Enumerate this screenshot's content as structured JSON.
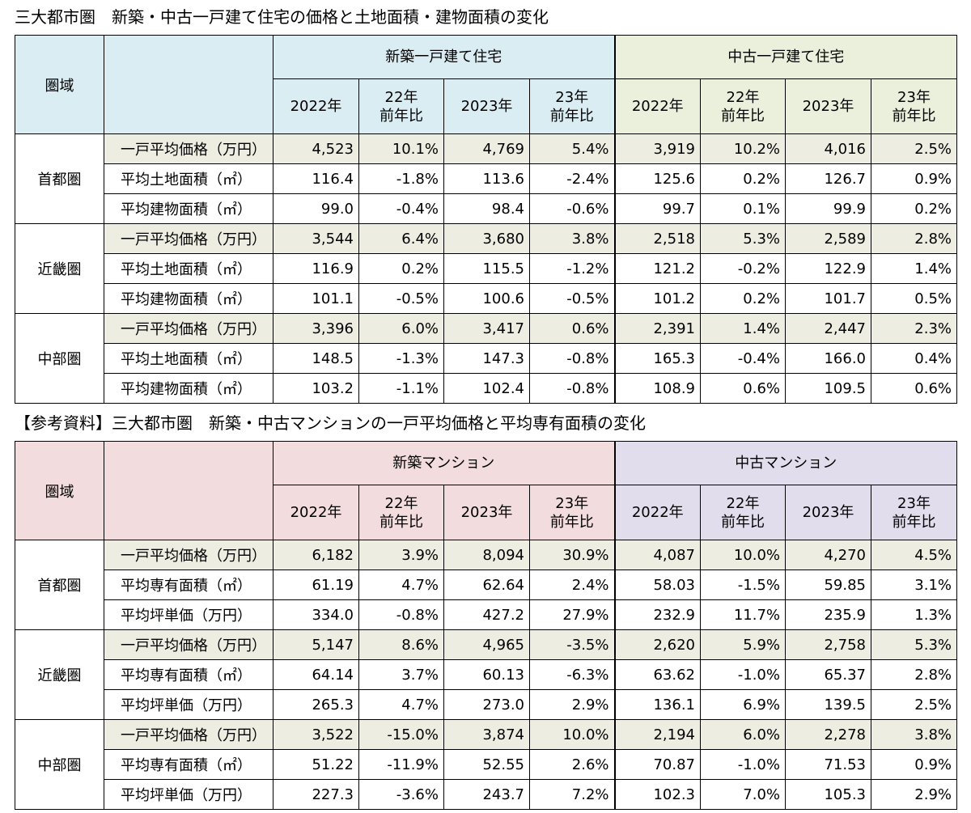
{
  "table1": {
    "title": "三大都市圏　新築・中古一戸建て住宅の価格と土地面積・建物面積の変化",
    "region_header": "圏域",
    "groups": [
      "新築一戸建て住宅",
      "中古一戸建て住宅"
    ],
    "colors": {
      "header_a": "#daedf3",
      "header_b": "#eaf0dc",
      "highlight_row": "#eeede2"
    },
    "subheaders": [
      {
        "line1": "2022年",
        "line2": ""
      },
      {
        "line1": "22年",
        "line2": "前年比"
      },
      {
        "line1": "2023年",
        "line2": ""
      },
      {
        "line1": "23年",
        "line2": "前年比"
      },
      {
        "line1": "2022年",
        "line2": ""
      },
      {
        "line1": "22年",
        "line2": "前年比"
      },
      {
        "line1": "2023年",
        "line2": ""
      },
      {
        "line1": "23年",
        "line2": "前年比"
      }
    ],
    "regions": [
      {
        "name": "首都圏",
        "rows": [
          {
            "label": "一戸平均価格（万円）",
            "values": [
              "4,523",
              "10.1%",
              "4,769",
              "5.4%",
              "3,919",
              "10.2%",
              "4,016",
              "2.5%"
            ]
          },
          {
            "label": "平均土地面積（㎡）",
            "values": [
              "116.4",
              "-1.8%",
              "113.6",
              "-2.4%",
              "125.6",
              "0.2%",
              "126.7",
              "0.9%"
            ]
          },
          {
            "label": "平均建物面積（㎡）",
            "values": [
              "99.0",
              "-0.4%",
              "98.4",
              "-0.6%",
              "99.7",
              "0.1%",
              "99.9",
              "0.2%"
            ]
          }
        ]
      },
      {
        "name": "近畿圏",
        "rows": [
          {
            "label": "一戸平均価格（万円）",
            "values": [
              "3,544",
              "6.4%",
              "3,680",
              "3.8%",
              "2,518",
              "5.3%",
              "2,589",
              "2.8%"
            ]
          },
          {
            "label": "平均土地面積（㎡）",
            "values": [
              "116.9",
              "0.2%",
              "115.5",
              "-1.2%",
              "121.2",
              "-0.2%",
              "122.9",
              "1.4%"
            ]
          },
          {
            "label": "平均建物面積（㎡）",
            "values": [
              "101.1",
              "-0.5%",
              "100.6",
              "-0.5%",
              "101.2",
              "0.2%",
              "101.7",
              "0.5%"
            ]
          }
        ]
      },
      {
        "name": "中部圏",
        "rows": [
          {
            "label": "一戸平均価格（万円）",
            "values": [
              "3,396",
              "6.0%",
              "3,417",
              "0.6%",
              "2,391",
              "1.4%",
              "2,447",
              "2.3%"
            ]
          },
          {
            "label": "平均土地面積（㎡）",
            "values": [
              "148.5",
              "-1.3%",
              "147.3",
              "-0.8%",
              "165.3",
              "-0.4%",
              "166.0",
              "0.4%"
            ]
          },
          {
            "label": "平均建物面積（㎡）",
            "values": [
              "103.2",
              "-1.1%",
              "102.4",
              "-0.8%",
              "108.9",
              "0.6%",
              "109.5",
              "0.6%"
            ]
          }
        ]
      }
    ]
  },
  "table2": {
    "title": "【参考資料】三大都市圏　新築・中古マンションの一戸平均価格と平均専有面積の変化",
    "region_header": "圏域",
    "groups": [
      "新築マンション",
      "中古マンション"
    ],
    "colors": {
      "header_a": "#f3dcdd",
      "header_b": "#e1ddec",
      "highlight_row": "#eeede2"
    },
    "subheaders": [
      {
        "line1": "2022年",
        "line2": ""
      },
      {
        "line1": "22年",
        "line2": "前年比"
      },
      {
        "line1": "2023年",
        "line2": ""
      },
      {
        "line1": "23年",
        "line2": "前年比"
      },
      {
        "line1": "2022年",
        "line2": ""
      },
      {
        "line1": "22年",
        "line2": "前年比"
      },
      {
        "line1": "2023年",
        "line2": ""
      },
      {
        "line1": "23年",
        "line2": "前年比"
      }
    ],
    "regions": [
      {
        "name": "首都圏",
        "rows": [
          {
            "label": "一戸平均価格（万円）",
            "values": [
              "6,182",
              "3.9%",
              "8,094",
              "30.9%",
              "4,087",
              "10.0%",
              "4,270",
              "4.5%"
            ]
          },
          {
            "label": "平均専有面積（㎡）",
            "values": [
              "61.19",
              "4.7%",
              "62.64",
              "2.4%",
              "58.03",
              "-1.5%",
              "59.85",
              "3.1%"
            ]
          },
          {
            "label": "平均坪単価（万円）",
            "values": [
              "334.0",
              "-0.8%",
              "427.2",
              "27.9%",
              "232.9",
              "11.7%",
              "235.9",
              "1.3%"
            ]
          }
        ]
      },
      {
        "name": "近畿圏",
        "rows": [
          {
            "label": "一戸平均価格（万円）",
            "values": [
              "5,147",
              "8.6%",
              "4,965",
              "-3.5%",
              "2,620",
              "5.9%",
              "2,758",
              "5.3%"
            ]
          },
          {
            "label": "平均専有面積（㎡）",
            "values": [
              "64.14",
              "3.7%",
              "60.13",
              "-6.3%",
              "63.62",
              "-1.0%",
              "65.37",
              "2.8%"
            ]
          },
          {
            "label": "平均坪単価（万円）",
            "values": [
              "265.3",
              "4.7%",
              "273.0",
              "2.9%",
              "136.1",
              "6.9%",
              "139.5",
              "2.5%"
            ]
          }
        ]
      },
      {
        "name": "中部圏",
        "rows": [
          {
            "label": "一戸平均価格（万円）",
            "values": [
              "3,522",
              "-15.0%",
              "3,874",
              "10.0%",
              "2,194",
              "6.0%",
              "2,278",
              "3.8%"
            ]
          },
          {
            "label": "平均専有面積（㎡）",
            "values": [
              "51.22",
              "-11.9%",
              "52.55",
              "2.6%",
              "70.87",
              "-1.0%",
              "71.53",
              "0.9%"
            ]
          },
          {
            "label": "平均坪単価（万円）",
            "values": [
              "227.3",
              "-3.6%",
              "243.7",
              "7.2%",
              "102.3",
              "7.0%",
              "105.3",
              "2.9%"
            ]
          }
        ]
      }
    ]
  }
}
